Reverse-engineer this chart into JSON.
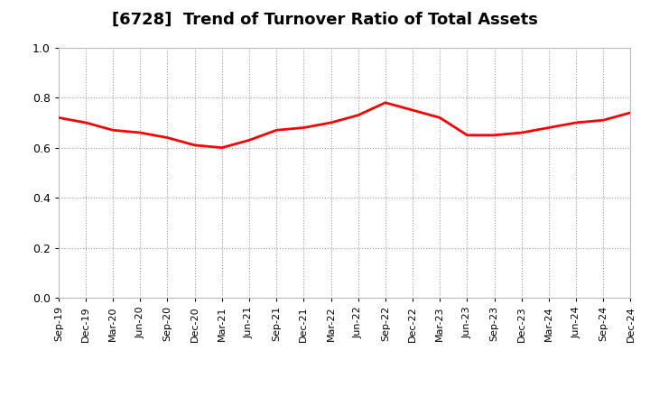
{
  "title": "[6728]  Trend of Turnover Ratio of Total Assets",
  "title_fontsize": 13,
  "title_fontweight": "bold",
  "line_color": "#FF0000",
  "line_width": 2.0,
  "background_color": "#FFFFFF",
  "grid_color": "#999999",
  "ylim": [
    0.0,
    1.0
  ],
  "yticks": [
    0.0,
    0.2,
    0.4,
    0.6,
    0.8,
    1.0
  ],
  "labels": [
    "Sep-19",
    "Dec-19",
    "Mar-20",
    "Jun-20",
    "Sep-20",
    "Dec-20",
    "Mar-21",
    "Jun-21",
    "Sep-21",
    "Dec-21",
    "Mar-22",
    "Jun-22",
    "Sep-22",
    "Dec-22",
    "Mar-23",
    "Jun-23",
    "Sep-23",
    "Dec-23",
    "Mar-24",
    "Jun-24",
    "Sep-24",
    "Dec-24"
  ],
  "values": [
    0.72,
    0.7,
    0.67,
    0.66,
    0.64,
    0.61,
    0.6,
    0.63,
    0.67,
    0.68,
    0.7,
    0.73,
    0.78,
    0.75,
    0.72,
    0.65,
    0.65,
    0.66,
    0.68,
    0.7,
    0.71,
    0.74
  ]
}
